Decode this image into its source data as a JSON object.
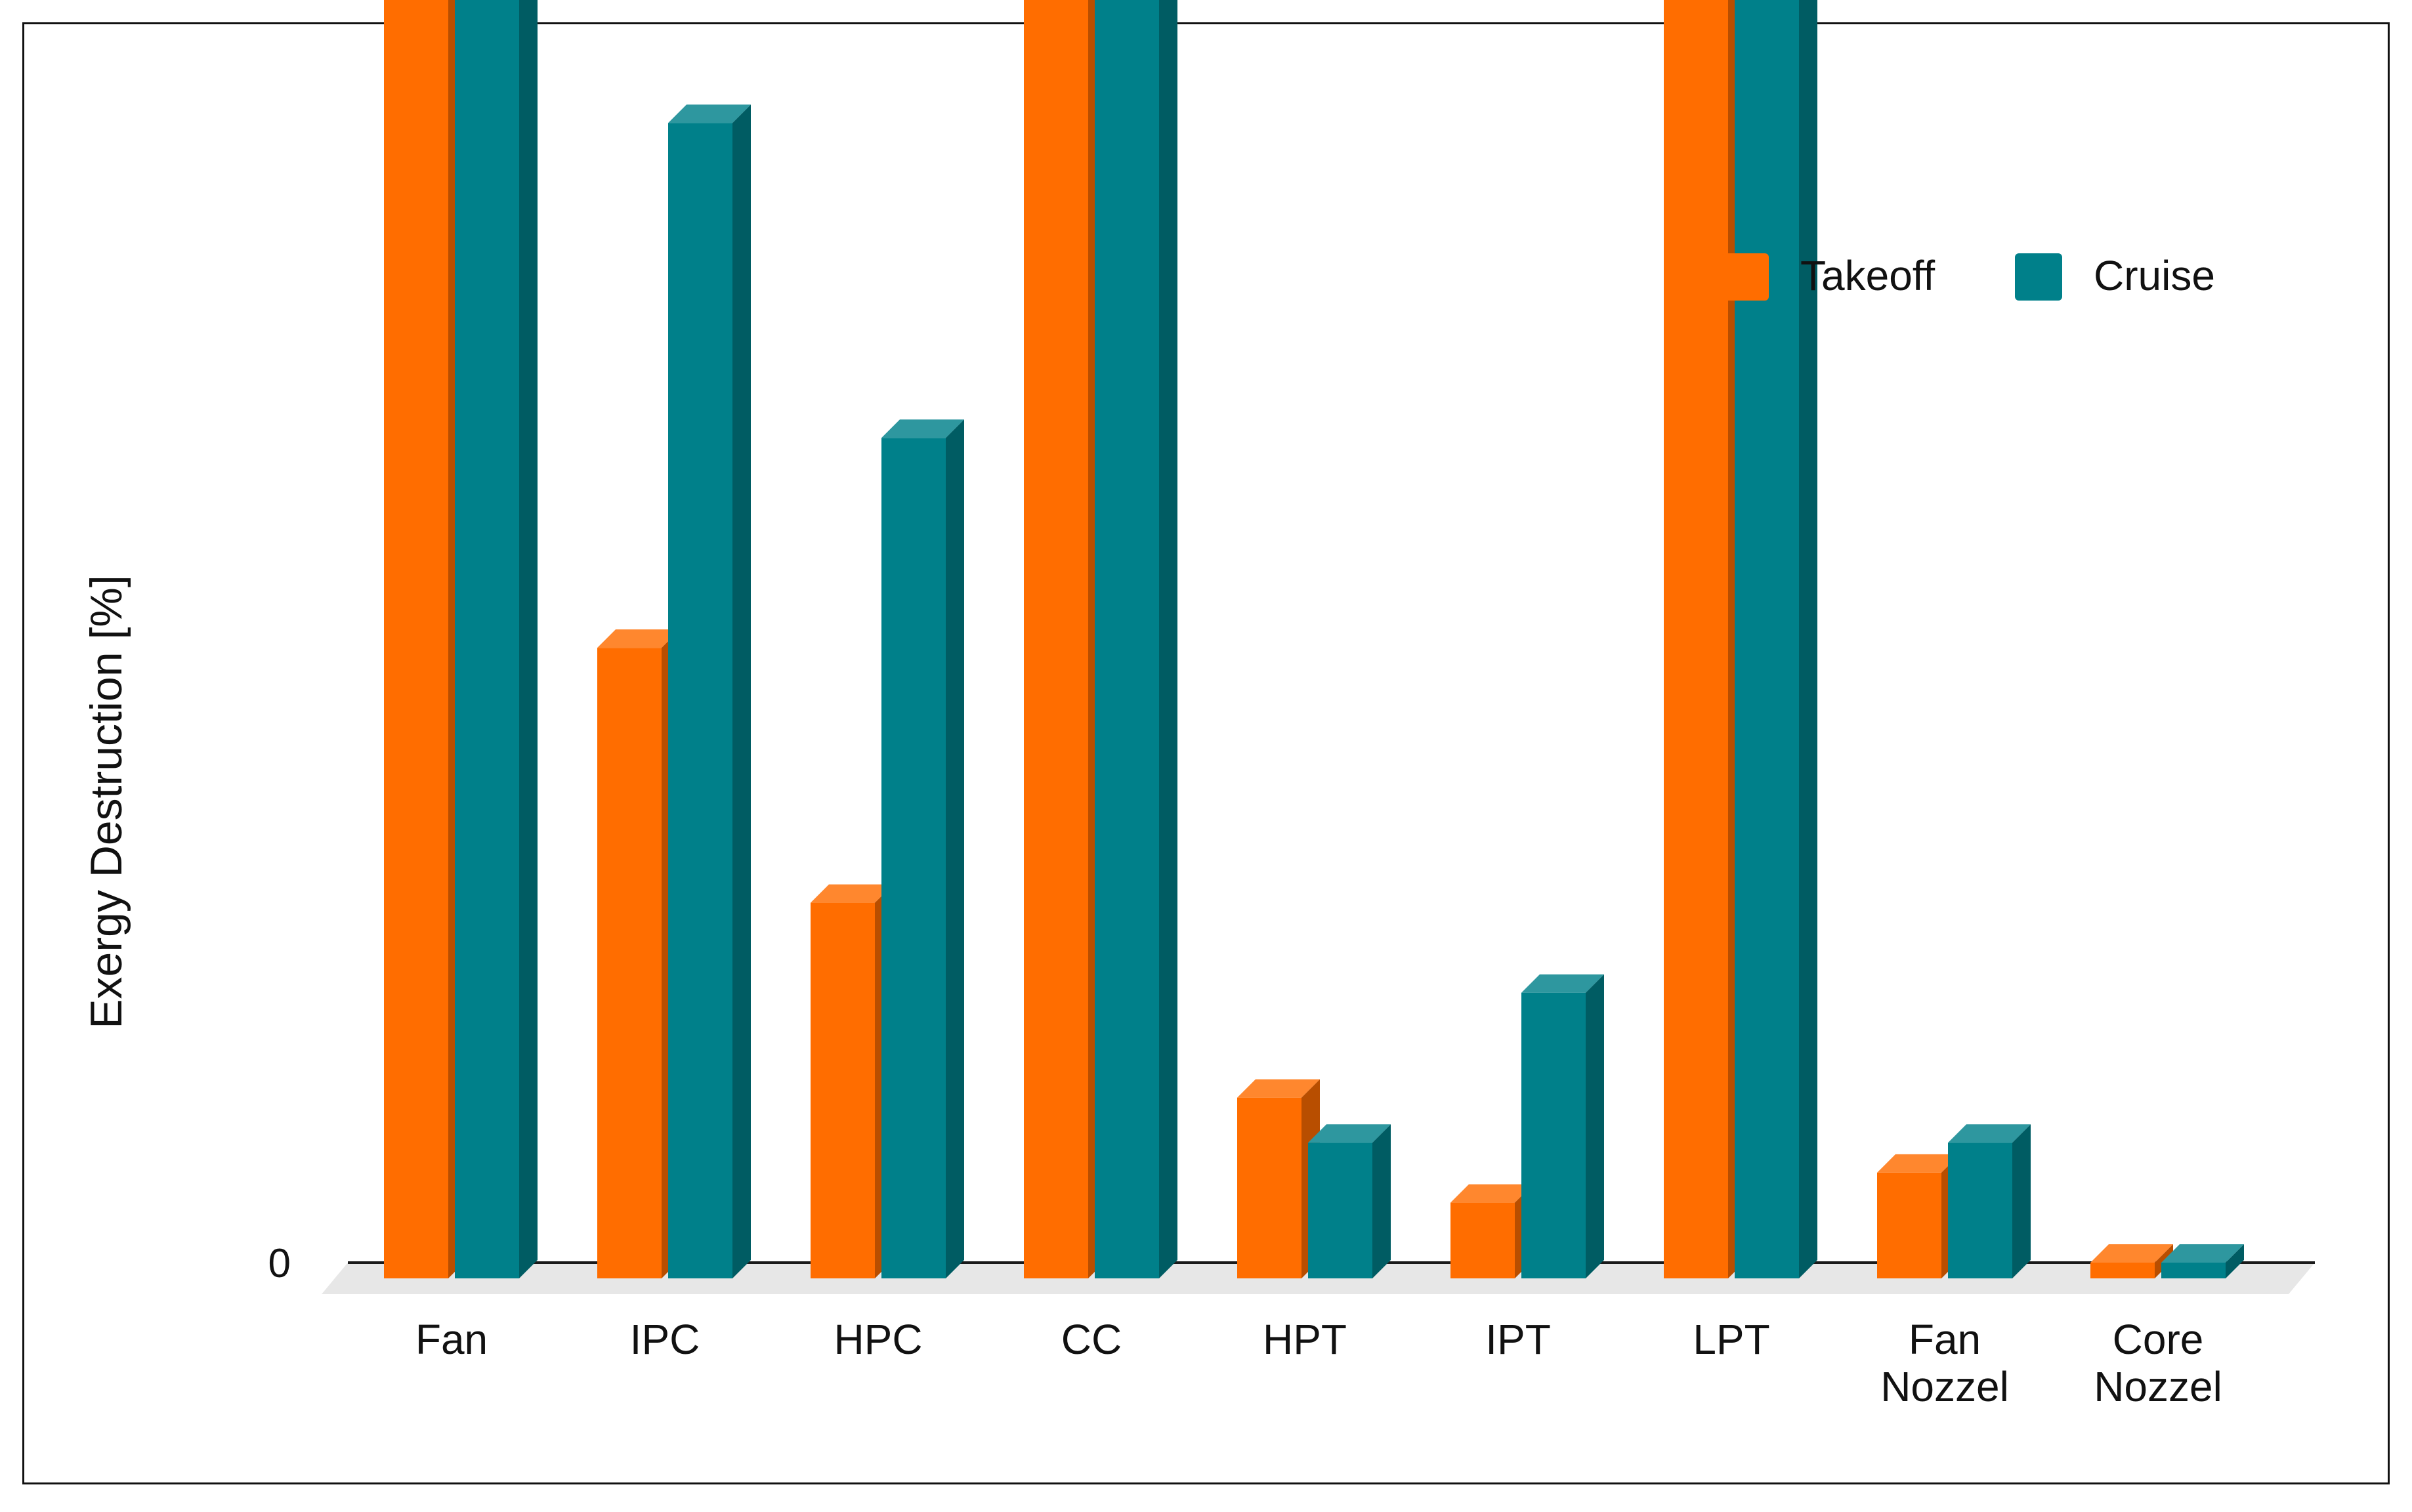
{
  "chart_data": {
    "type": "bar",
    "title": "",
    "xlabel": "",
    "ylabel": "Exergy  Destruction [%]",
    "ylim": [
      0,
      70
    ],
    "yticks": [
      0,
      10,
      20,
      30,
      40,
      50,
      60,
      70
    ],
    "grid": true,
    "legend_position": "top-right",
    "style": "3d-clustered-columns",
    "categories": [
      [
        "Fan"
      ],
      [
        "IPC"
      ],
      [
        "HPC"
      ],
      [
        "CC"
      ],
      [
        "HPT"
      ],
      [
        "IPT"
      ],
      [
        "LPT"
      ],
      [
        "Fan",
        "Nozzel"
      ],
      [
        "Core",
        "Nozzel"
      ]
    ],
    "series": [
      {
        "name": "Takeoff",
        "color": "#FF6D00",
        "values": [
          10.8,
          4.1,
          2.4,
          54.3,
          1.1,
          0.4,
          9.8,
          0.6,
          0.0
        ]
      },
      {
        "name": "Cruise",
        "color": "#00808A",
        "values": [
          14.9,
          7.6,
          5.5,
          46.9,
          0.8,
          1.8,
          11.8,
          0.8,
          0.0
        ]
      }
    ]
  }
}
